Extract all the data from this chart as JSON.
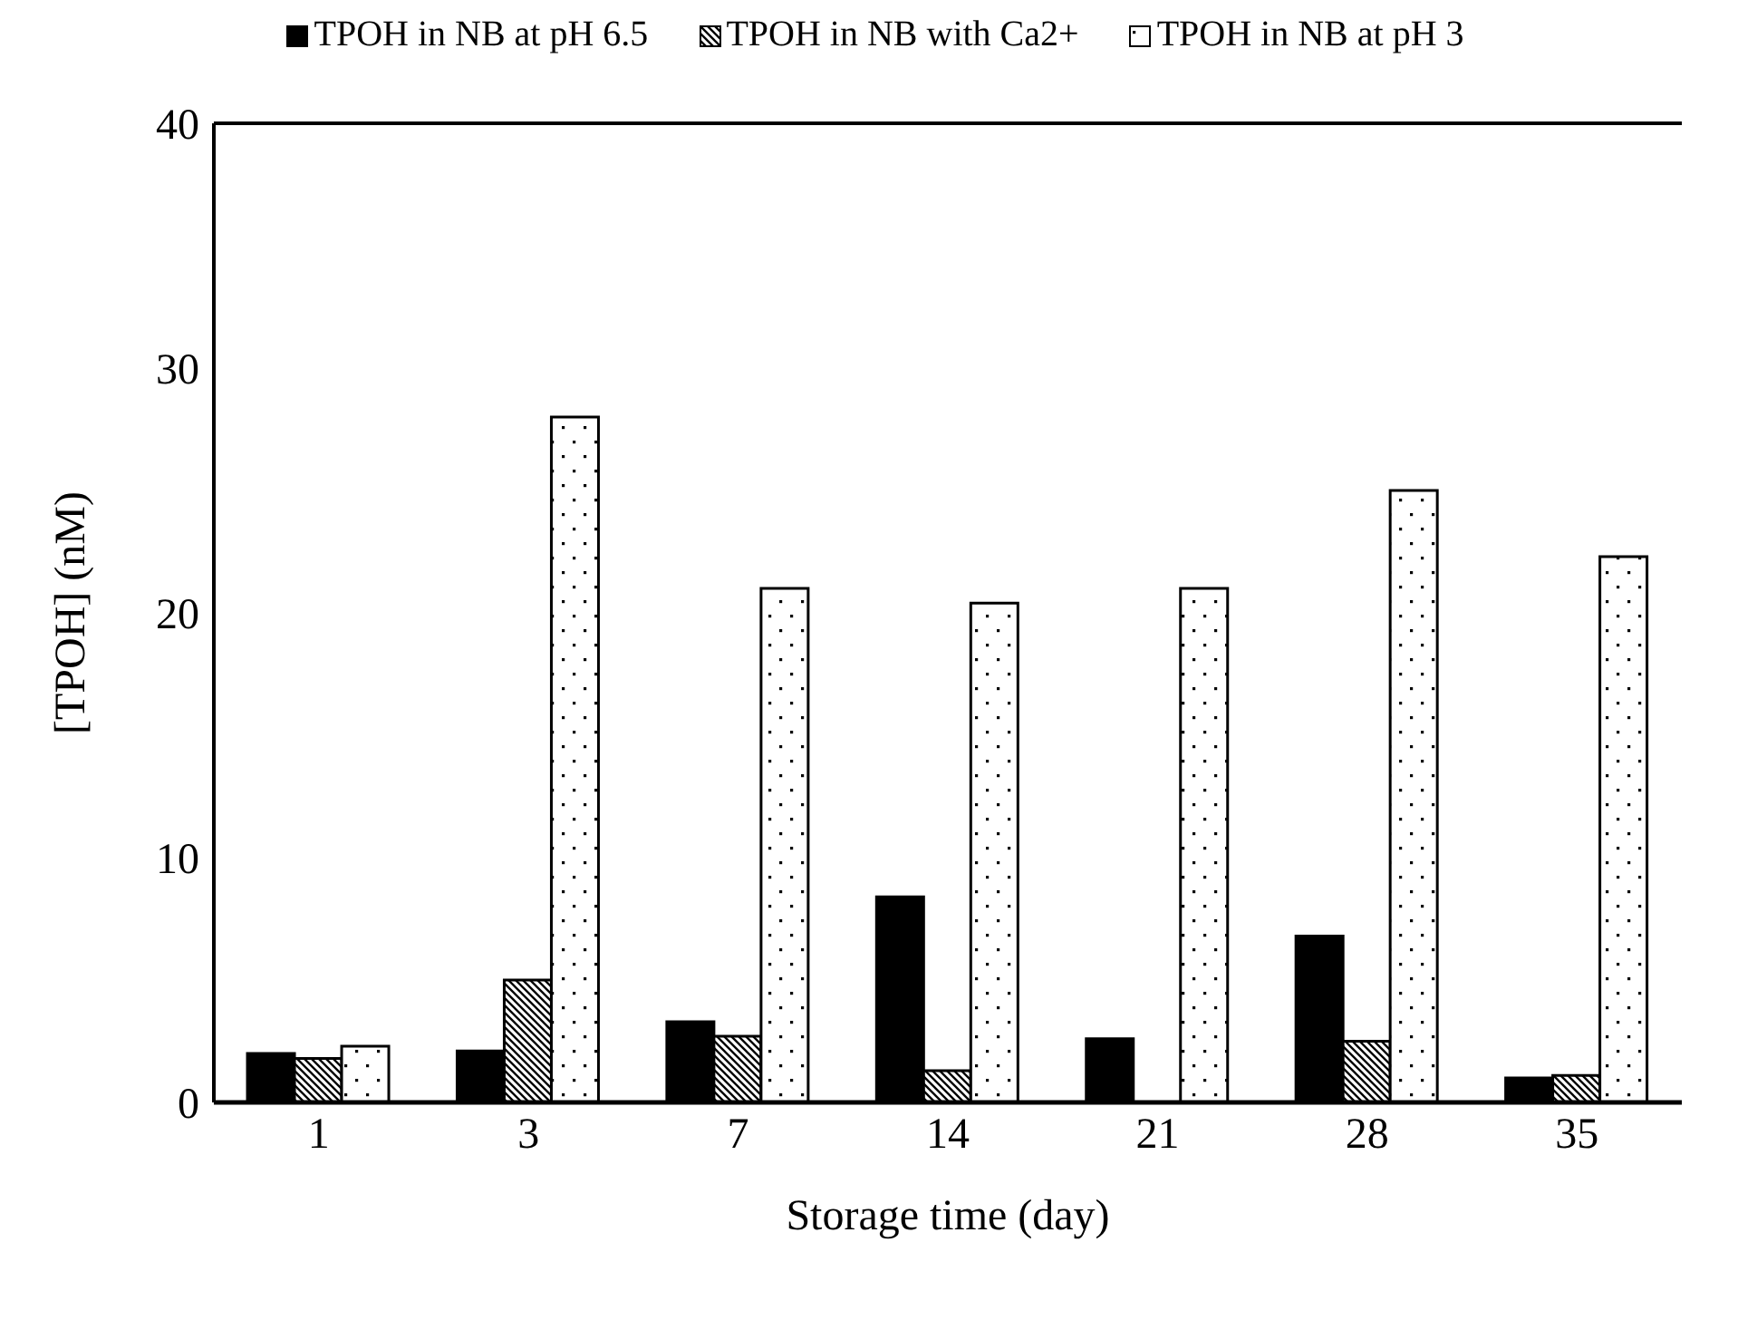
{
  "chart_data": {
    "type": "bar",
    "xlabel": "Storage time (day)",
    "ylabel": "[TPOH] (nM)",
    "categories": [
      "1",
      "3",
      "7",
      "14",
      "21",
      "28",
      "35"
    ],
    "series": [
      {
        "name": "TPOH in NB at pH 6.5",
        "color": "#000000",
        "values": [
          2.0,
          2.1,
          3.3,
          8.4,
          2.6,
          6.8,
          1.0
        ]
      },
      {
        "name": "TPOH in NB with Ca2+",
        "color": "#000000",
        "values": [
          1.8,
          5.0,
          2.7,
          1.3,
          0,
          2.5,
          1.1
        ]
      },
      {
        "name": "TPOH in NB at pH 3",
        "color": "#000000",
        "values": [
          2.3,
          28.0,
          21.0,
          20.4,
          21.0,
          25.0,
          22.3
        ]
      }
    ],
    "ylim": [
      0,
      40
    ],
    "yticks": [
      0,
      10,
      20,
      30,
      40
    ],
    "grid": false,
    "legend": "top"
  }
}
